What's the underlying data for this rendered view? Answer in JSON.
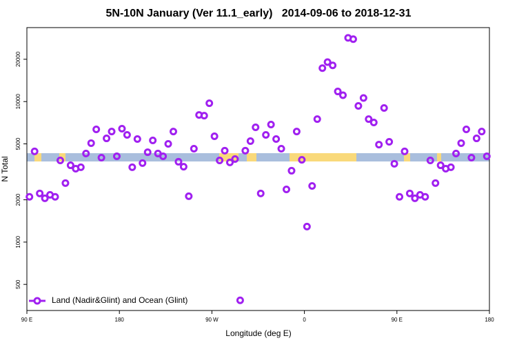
{
  "chart_data": {
    "type": "scatter",
    "title": "5N-10N January (Ver 11.1_early)   2014-09-06 to 2018-12-31",
    "xlabel": "Longitude (deg E)",
    "ylabel": "N Total",
    "log_y": true,
    "legend": "bottom-left",
    "xlim": [
      90,
      540
    ],
    "xticks": [
      {
        "value": 90,
        "label": "90 E"
      },
      180,
      {
        "value": 270,
        "label": "90 W"
      },
      {
        "value": 360,
        "label": "0"
      },
      {
        "value": 450,
        "label": "90 E"
      },
      {
        "value": 540,
        "label": "180"
      }
    ],
    "ylim": [
      326,
      33600
    ],
    "yticks": [
      500,
      1000,
      2000,
      5000,
      10000,
      20000
    ],
    "series": [
      {
        "name": "Land (Nadir&Glint) and Ocean (Glint)",
        "color": "#a020f0",
        "x": [
          92.5,
          97.5,
          102.5,
          107.5,
          112.5,
          117.5,
          122.5,
          127.5,
          132.5,
          137.5,
          142.5,
          147.5,
          152.5,
          157.5,
          162.5,
          167.5,
          172.5,
          177.5,
          182.5,
          187.5,
          192.5,
          197.5,
          202.5,
          207.5,
          212.5,
          217.5,
          222.5,
          227.5,
          232.5,
          237.5,
          242.5,
          247.5,
          252.5,
          257.5,
          262.5,
          267.5,
          272.5,
          277.5,
          282.5,
          287.5,
          292.5,
          297.5,
          302.5,
          307.5,
          312.5,
          317.5,
          322.5,
          327.5,
          332.5,
          337.5,
          342.5,
          347.5,
          352.5,
          357.5,
          362.5,
          367.5,
          372.5,
          377.5,
          382.5,
          387.5,
          392.5,
          397.5,
          402.5,
          407.5,
          412.5,
          417.5,
          422.5,
          427.5,
          432.5,
          437.5,
          442.5,
          447.5,
          452.5,
          457.5,
          462.5,
          467.5,
          472.5,
          477.5,
          482.5,
          487.5,
          492.5,
          497.5,
          502.5,
          507.5,
          512.5,
          517.5,
          522.5,
          527.5,
          532.5,
          537.5
        ],
        "values": [
          2100,
          4420,
          2220,
          2050,
          2170,
          2100,
          3810,
          2630,
          3520,
          3330,
          3410,
          4270,
          5060,
          6340,
          3990,
          5470,
          6120,
          4080,
          6410,
          5790,
          3410,
          5410,
          3650,
          4360,
          5290,
          4270,
          4080,
          5000,
          6120,
          3730,
          3440,
          2120,
          4620,
          8030,
          7940,
          9730,
          5660,
          3810,
          4470,
          3690,
          3900,
          385,
          4470,
          5230,
          6560,
          2220,
          5790,
          6860,
          5410,
          4620,
          2370,
          3220,
          6120,
          3850,
          1290,
          2510,
          7500,
          17300,
          19100,
          18100,
          11800,
          11100,
          28400,
          27800,
          9310,
          10600,
          7500,
          7100,
          4940,
          9000,
          5170,
          3610,
          2100,
          4420,
          2220,
          2050,
          2170,
          2100,
          3810,
          2630,
          3520,
          3330,
          3410,
          4270,
          5060,
          6340,
          3990,
          5470,
          6120,
          4080
        ]
      }
    ]
  }
}
